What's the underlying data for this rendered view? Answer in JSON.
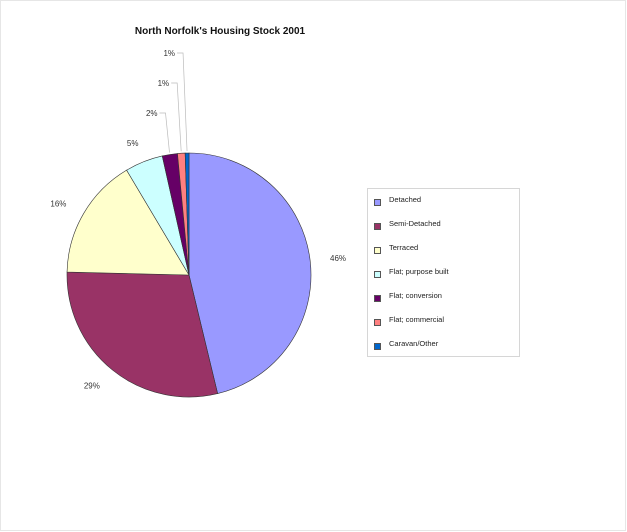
{
  "chart_data": {
    "type": "pie",
    "title": "North Norfolk's Housing Stock 2001",
    "legend_position": "right",
    "slices": [
      {
        "label": "Detached",
        "value": 46,
        "display": "46%",
        "color": "#9999ff"
      },
      {
        "label": "Semi-Detached",
        "value": 29,
        "display": "29%",
        "color": "#993366"
      },
      {
        "label": "Terraced",
        "value": 16,
        "display": "16%",
        "color": "#ffffcc"
      },
      {
        "label": "Flat; purpose built",
        "value": 5,
        "display": "5%",
        "color": "#ccffff"
      },
      {
        "label": "Flat; conversion",
        "value": 2,
        "display": "2%",
        "color": "#660066"
      },
      {
        "label": "Flat; commercial",
        "value": 1,
        "display": "1%",
        "color": "#ff8080"
      },
      {
        "label": "Caravan/Other",
        "value": 0.5,
        "display": "1%",
        "color": "#0066cc"
      }
    ]
  }
}
